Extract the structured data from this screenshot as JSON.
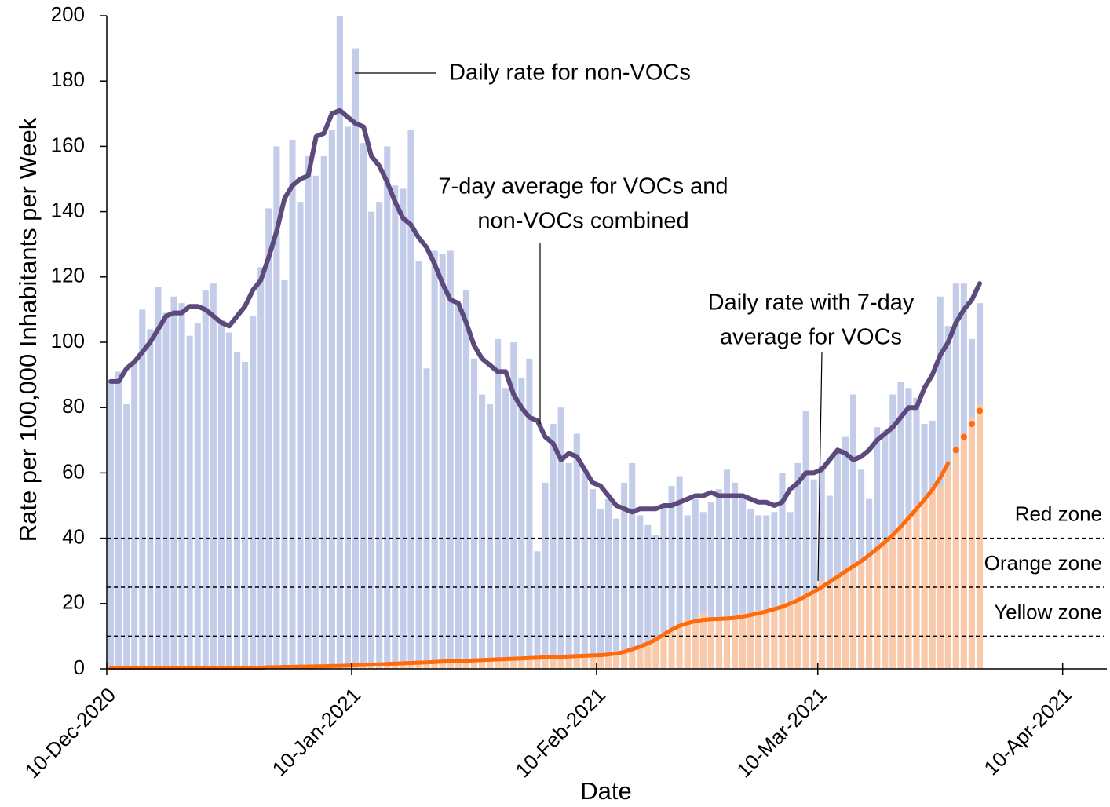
{
  "chart_data": {
    "type": "bar",
    "x_label": "Date",
    "y_label": "Rate per 100,000 Inhabitants per Week",
    "x": [
      "2020-12-10",
      "2020-12-11",
      "2020-12-12",
      "2020-12-13",
      "2020-12-14",
      "2020-12-15",
      "2020-12-16",
      "2020-12-17",
      "2020-12-18",
      "2020-12-19",
      "2020-12-20",
      "2020-12-21",
      "2020-12-22",
      "2020-12-23",
      "2020-12-24",
      "2020-12-25",
      "2020-12-26",
      "2020-12-27",
      "2020-12-28",
      "2020-12-29",
      "2020-12-30",
      "2020-12-31",
      "2021-01-01",
      "2021-01-02",
      "2021-01-03",
      "2021-01-04",
      "2021-01-05",
      "2021-01-06",
      "2021-01-07",
      "2021-01-08",
      "2021-01-09",
      "2021-01-10",
      "2021-01-11",
      "2021-01-12",
      "2021-01-13",
      "2021-01-14",
      "2021-01-15",
      "2021-01-16",
      "2021-01-17",
      "2021-01-18",
      "2021-01-19",
      "2021-01-20",
      "2021-01-21",
      "2021-01-22",
      "2021-01-23",
      "2021-01-24",
      "2021-01-25",
      "2021-01-26",
      "2021-01-27",
      "2021-01-28",
      "2021-01-29",
      "2021-01-30",
      "2021-01-31",
      "2021-02-01",
      "2021-02-02",
      "2021-02-03",
      "2021-02-04",
      "2021-02-05",
      "2021-02-06",
      "2021-02-07",
      "2021-02-08",
      "2021-02-09",
      "2021-02-10",
      "2021-02-11",
      "2021-02-12",
      "2021-02-13",
      "2021-02-14",
      "2021-02-15",
      "2021-02-16",
      "2021-02-17",
      "2021-02-18",
      "2021-02-19",
      "2021-02-20",
      "2021-02-21",
      "2021-02-22",
      "2021-02-23",
      "2021-02-24",
      "2021-02-25",
      "2021-02-26",
      "2021-02-27",
      "2021-02-28",
      "2021-03-01",
      "2021-03-02",
      "2021-03-03",
      "2021-03-04",
      "2021-03-05",
      "2021-03-06",
      "2021-03-07",
      "2021-03-08",
      "2021-03-09",
      "2021-03-10",
      "2021-03-11",
      "2021-03-12",
      "2021-03-13",
      "2021-03-14",
      "2021-03-15",
      "2021-03-16",
      "2021-03-17",
      "2021-03-18",
      "2021-03-19",
      "2021-03-20",
      "2021-03-21",
      "2021-03-22",
      "2021-03-23",
      "2021-03-24",
      "2021-03-25",
      "2021-03-26",
      "2021-03-27",
      "2021-03-28",
      "2021-03-29",
      "2021-03-30"
    ],
    "series": [
      {
        "kind": "bar",
        "color": "#c3cce9",
        "values": [
          88,
          91,
          81,
          94,
          110,
          104,
          117,
          109,
          114,
          112,
          102,
          106,
          116,
          118,
          107,
          103,
          97,
          94,
          108,
          123,
          141,
          160,
          119,
          162,
          143,
          157,
          151,
          157,
          165,
          200,
          166,
          190,
          161,
          140,
          143,
          160,
          148,
          147,
          165,
          125,
          92,
          128,
          127,
          128,
          112,
          116,
          95,
          84,
          81,
          101,
          86,
          100,
          89,
          95,
          36,
          57,
          75,
          80,
          63,
          72,
          60,
          55,
          49,
          52,
          46,
          57,
          63,
          47,
          44,
          41,
          50,
          56,
          59,
          47,
          52,
          48,
          51,
          55,
          61,
          57,
          53,
          49,
          47,
          47,
          48,
          60,
          48,
          63,
          79,
          58,
          62,
          53,
          67,
          71,
          84,
          61,
          52,
          74,
          73,
          84,
          88,
          86,
          83,
          75,
          76,
          114,
          105,
          118,
          118,
          101,
          112
        ]
      },
      {
        "kind": "bar",
        "color": "#f9c9a9",
        "values": [
          0.2,
          0.2,
          0.2,
          0.2,
          0.2,
          0.2,
          0.2,
          0.2,
          0.2,
          0.2,
          0.3,
          0.3,
          0.3,
          0.3,
          0.3,
          0.3,
          0.3,
          0.3,
          0.3,
          0.3,
          0.5,
          0.5,
          0.6,
          0.6,
          0.7,
          0.7,
          0.8,
          0.8,
          0.9,
          0.9,
          1.0,
          1.1,
          1.2,
          1.3,
          1.4,
          1.5,
          1.6,
          1.7,
          1.8,
          1.9,
          2.0,
          2.1,
          2.2,
          2.3,
          2.4,
          2.5,
          2.6,
          2.7,
          2.8,
          2.9,
          3.0,
          3.1,
          3.2,
          3.3,
          3.4,
          3.5,
          3.6,
          3.7,
          3.8,
          3.9,
          4.0,
          4.1,
          4.2,
          4.4,
          4.7,
          5.2,
          6.0,
          6.8,
          7.8,
          9.0,
          11,
          12,
          14,
          15,
          15,
          17,
          15,
          16,
          15,
          16,
          17,
          16,
          18,
          18,
          19,
          20,
          20,
          22,
          23,
          24,
          27,
          26,
          29,
          30,
          32,
          33,
          35,
          37,
          39,
          41,
          44,
          47,
          50,
          52,
          55,
          56,
          61,
          66,
          72,
          77,
          81
        ]
      },
      {
        "kind": "line",
        "color": "#5b4a7b",
        "width": 6,
        "values": [
          88,
          88,
          92,
          94,
          97,
          100,
          104,
          108,
          109,
          109,
          111,
          111,
          110,
          108,
          106,
          105,
          108,
          111,
          116,
          119,
          126,
          134,
          144,
          148,
          150,
          151,
          163,
          164,
          170,
          171,
          169,
          167,
          166,
          157,
          154,
          149,
          143,
          138,
          136,
          132,
          129,
          124,
          118,
          113,
          112,
          106,
          99,
          95,
          93,
          91,
          91,
          84,
          80,
          77,
          76,
          71,
          69,
          64,
          66,
          65,
          61,
          57,
          56,
          53,
          50,
          49,
          48,
          49,
          49,
          49,
          50,
          50,
          51,
          52,
          53,
          53,
          54,
          53,
          53,
          53,
          53,
          52,
          51,
          51,
          50,
          51,
          55,
          57,
          60,
          60,
          61,
          64,
          67,
          66,
          64,
          65,
          67,
          70,
          72,
          74,
          77,
          80,
          80,
          86,
          90,
          96,
          100,
          106,
          110,
          113,
          118
        ]
      },
      {
        "kind": "line",
        "color": "#ff6a0a",
        "width": 5,
        "values": [
          0.2,
          0.2,
          0.2,
          0.2,
          0.2,
          0.2,
          0.2,
          0.2,
          0.2,
          0.2,
          0.3,
          0.3,
          0.3,
          0.3,
          0.3,
          0.3,
          0.3,
          0.3,
          0.3,
          0.3,
          0.5,
          0.5,
          0.6,
          0.6,
          0.7,
          0.7,
          0.8,
          0.8,
          0.9,
          0.9,
          1.0,
          1.1,
          1.2,
          1.3,
          1.4,
          1.5,
          1.6,
          1.7,
          1.8,
          1.9,
          2.0,
          2.1,
          2.2,
          2.3,
          2.4,
          2.5,
          2.6,
          2.7,
          2.8,
          2.9,
          3.0,
          3.1,
          3.2,
          3.3,
          3.4,
          3.5,
          3.6,
          3.7,
          3.8,
          3.9,
          4.0,
          4.1,
          4.2,
          4.4,
          4.7,
          5.2,
          6.0,
          6.8,
          7.8,
          9.0,
          10.5,
          12.0,
          13.2,
          14.0,
          14.6,
          15.0,
          15.2,
          15.3,
          15.4,
          15.6,
          16.0,
          16.5,
          17.0,
          17.6,
          18.3,
          19.0,
          20.0,
          21.0,
          22.3,
          23.6,
          25.0,
          26.6,
          28.2,
          29.8,
          31.4,
          33.0,
          34.8,
          36.8,
          38.8,
          41.0,
          43.5,
          46.2,
          49.0,
          51.8,
          54.8,
          58.5,
          63.0,
          null,
          null,
          null,
          null
        ]
      },
      {
        "kind": "markers",
        "color": "#ff6a0a",
        "x": [
          "2021-03-27",
          "2021-03-28",
          "2021-03-29",
          "2021-03-30"
        ],
        "values": [
          67,
          71,
          75,
          79
        ]
      }
    ],
    "zones": [
      {
        "label": "Red zone",
        "value": 40
      },
      {
        "label": "Orange zone",
        "value": 25
      },
      {
        "label": "Yellow zone",
        "value": 10
      }
    ],
    "annotations": [
      {
        "lines": [
          "Daily rate for non-VOCs"
        ]
      },
      {
        "lines": [
          "7-day average for VOCs and",
          "non-VOCs combined"
        ]
      },
      {
        "lines": [
          "Daily rate with 7-day",
          "average for VOCs"
        ]
      }
    ],
    "xlim": [
      "2020-12-10",
      "2021-04-15"
    ],
    "xticks": [
      {
        "value": "2020-12-10",
        "label": "10-Dec-2020"
      },
      {
        "value": "2021-01-10",
        "label": "10-Jan-2021"
      },
      {
        "value": "2021-02-10",
        "label": "10-Feb-2021"
      },
      {
        "value": "2021-03-10",
        "label": "10-Mar-2021"
      },
      {
        "value": "2021-04-10",
        "label": "10-Apr-2021"
      }
    ],
    "ylim": [
      0,
      200
    ],
    "yticks": [
      0,
      20,
      40,
      60,
      80,
      100,
      120,
      140,
      160,
      180,
      200
    ]
  }
}
